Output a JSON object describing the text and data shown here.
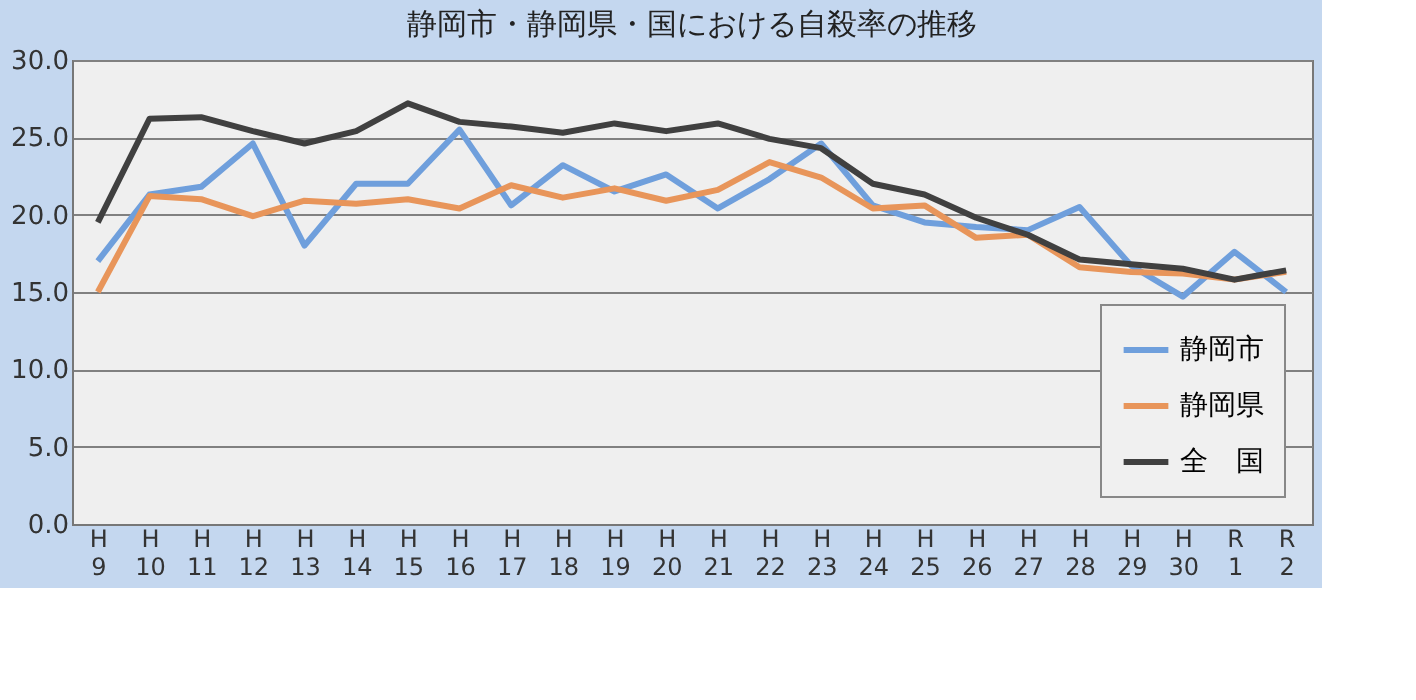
{
  "chart_data": {
    "type": "line",
    "title": "静岡市・静岡県・国における自殺率の推移",
    "categories": [
      "H9",
      "H10",
      "H11",
      "H12",
      "H13",
      "H14",
      "H15",
      "H16",
      "H17",
      "H18",
      "H19",
      "H20",
      "H21",
      "H22",
      "H23",
      "H24",
      "H25",
      "H26",
      "H27",
      "H28",
      "H29",
      "H30",
      "R1",
      "R2"
    ],
    "series": [
      {
        "name": "静岡市",
        "color": "#6f9fdc",
        "values": [
          17.0,
          21.3,
          21.8,
          24.6,
          18.0,
          22.0,
          22.0,
          25.5,
          20.6,
          23.2,
          21.5,
          22.6,
          20.4,
          22.3,
          24.6,
          20.6,
          19.5,
          19.2,
          19.0,
          20.5,
          16.7,
          14.7,
          17.6,
          15.0
        ]
      },
      {
        "name": "静岡県",
        "color": "#e8955a",
        "values": [
          15.0,
          21.2,
          21.0,
          19.9,
          20.9,
          20.7,
          21.0,
          20.4,
          21.9,
          21.1,
          21.7,
          20.9,
          21.6,
          23.4,
          22.4,
          20.4,
          20.6,
          18.5,
          18.7,
          16.6,
          16.3,
          16.2,
          15.8,
          16.3
        ]
      },
      {
        "name": "全　国",
        "color": "#404040",
        "values": [
          19.5,
          26.2,
          26.3,
          25.4,
          24.6,
          25.4,
          27.2,
          26.0,
          25.7,
          25.3,
          25.9,
          25.4,
          25.9,
          24.9,
          24.3,
          22.0,
          21.3,
          19.8,
          18.7,
          17.1,
          16.8,
          16.5,
          15.8,
          16.4
        ]
      }
    ],
    "ylim": [
      0,
      30
    ],
    "yticks": [
      {
        "value": 0,
        "label": "0.0"
      },
      {
        "value": 5,
        "label": "5.0"
      },
      {
        "value": 10,
        "label": "10.0"
      },
      {
        "value": 15,
        "label": "15.0"
      },
      {
        "value": 20,
        "label": "20.0"
      },
      {
        "value": 25,
        "label": "25.0"
      },
      {
        "value": 30,
        "label": "30.0"
      }
    ],
    "grid": "y",
    "legend": "bottom right"
  }
}
